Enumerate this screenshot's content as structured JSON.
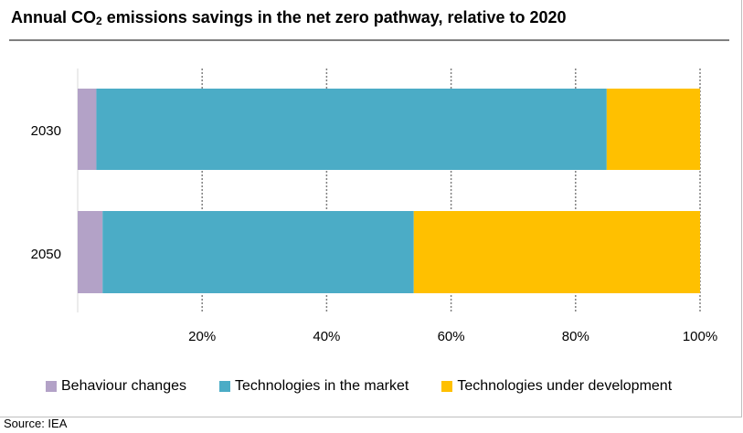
{
  "title": {
    "text_before": "Annual CO",
    "subscript": "2",
    "text_after": " emissions savings in the net zero pathway, relative to 2020"
  },
  "source": "Source: IEA",
  "chart_data": {
    "type": "bar",
    "orientation": "horizontal",
    "stacked": true,
    "categories": [
      "2030",
      "2050"
    ],
    "series": [
      {
        "name": "Behaviour changes",
        "values": [
          3,
          4
        ],
        "color": "#b3a2c7"
      },
      {
        "name": "Technologies in the market",
        "values": [
          82,
          50
        ],
        "color": "#4bacc6"
      },
      {
        "name": "Technologies under development",
        "values": [
          15,
          46
        ],
        "color": "#ffc000"
      }
    ],
    "xlim": [
      0,
      100
    ],
    "xticks": [
      {
        "value": 20,
        "label": "20%"
      },
      {
        "value": 40,
        "label": "40%"
      },
      {
        "value": 60,
        "label": "60%"
      },
      {
        "value": 80,
        "label": "80%"
      },
      {
        "value": 100,
        "label": "100%"
      }
    ],
    "grid": "vertical-dashed",
    "legend": "bottom"
  }
}
